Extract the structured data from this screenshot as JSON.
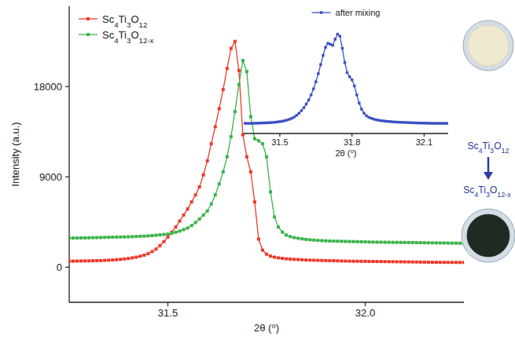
{
  "chart_data": [
    {
      "type": "line",
      "marker": "square",
      "legend": "upper left",
      "x_label": "2θ (⁰)",
      "y_label": "Intensity (a.u.)",
      "annotations": [
        "Sc4Ti3O12",
        "Sc4Ti3O12-x"
      ],
      "xlim": [
        31.25,
        32.25
      ],
      "ylim": [
        -3500,
        26000
      ],
      "xticks": [
        31.5,
        {
          "value": 32,
          "label": "32.0"
        }
      ],
      "yticks": [
        0,
        9000,
        18000
      ],
      "x": [
        31.25,
        31.26,
        31.27,
        31.28,
        31.29,
        31.3,
        31.31,
        31.32,
        31.33,
        31.34,
        31.35,
        31.36,
        31.37,
        31.38,
        31.39,
        31.4,
        31.41,
        31.42,
        31.43,
        31.44,
        31.45,
        31.46,
        31.47,
        31.48,
        31.49,
        31.5,
        31.51,
        31.52,
        31.53,
        31.54,
        31.55,
        31.56,
        31.57,
        31.58,
        31.59,
        31.6,
        31.61,
        31.62,
        31.63,
        31.64,
        31.65,
        31.66,
        31.67,
        31.68,
        31.69,
        31.7,
        31.71,
        31.72,
        31.73,
        31.74,
        31.75,
        31.76,
        31.77,
        31.78,
        31.79,
        31.8,
        31.81,
        31.82,
        31.83,
        31.84,
        31.85,
        31.86,
        31.87,
        31.88,
        31.89,
        31.9,
        31.91,
        31.92,
        31.93,
        31.94,
        31.95,
        31.96,
        31.97,
        31.98,
        31.99,
        32,
        32.01,
        32.02,
        32.03,
        32.04,
        32.05,
        32.06,
        32.07,
        32.08,
        32.09,
        32.1,
        32.11,
        32.12,
        32.13,
        32.14,
        32.15,
        32.16,
        32.17,
        32.18,
        32.19,
        32.2,
        32.21,
        32.22,
        32.23,
        32.24,
        32.25
      ],
      "series": [
        {
          "name": "Sc4Ti3O12",
          "color": "#ee3a2a",
          "values": [
            600,
            605,
            610,
            615,
            620,
            630,
            640,
            650,
            660,
            680,
            700,
            720,
            750,
            780,
            820,
            870,
            930,
            1000,
            1100,
            1200,
            1350,
            1550,
            1800,
            2150,
            2550,
            3000,
            3500,
            4000,
            4600,
            5200,
            5800,
            6500,
            7200,
            8000,
            9200,
            10600,
            12300,
            14000,
            15800,
            17700,
            19800,
            21800,
            22500,
            19600,
            13200,
            11000,
            9500,
            6500,
            2800,
            1700,
            1300,
            1100,
            1000,
            930,
            880,
            840,
            810,
            780,
            760,
            740,
            720,
            700,
            690,
            680,
            670,
            660,
            650,
            640,
            630,
            620,
            610,
            600,
            595,
            590,
            585,
            580,
            575,
            570,
            565,
            560,
            555,
            550,
            545,
            540,
            535,
            530,
            525,
            520,
            515,
            510,
            505,
            500,
            495,
            490,
            485,
            480,
            478,
            476,
            474,
            472,
            470
          ]
        },
        {
          "name": "Sc4Ti3O12-x",
          "color": "#3bb34a",
          "values": [
            2900,
            2905,
            2910,
            2915,
            2920,
            2930,
            2940,
            2950,
            2960,
            2970,
            2980,
            2990,
            3000,
            3010,
            3020,
            3030,
            3040,
            3060,
            3080,
            3100,
            3120,
            3150,
            3180,
            3220,
            3260,
            3300,
            3380,
            3480,
            3600,
            3750,
            3900,
            4150,
            4450,
            4800,
            5200,
            5600,
            6300,
            7200,
            8300,
            9500,
            11000,
            13000,
            15500,
            18200,
            20600,
            19500,
            15000,
            12800,
            12600,
            12300,
            11000,
            7500,
            5000,
            4000,
            3500,
            3200,
            3050,
            2950,
            2880,
            2820,
            2770,
            2730,
            2700,
            2670,
            2650,
            2630,
            2610,
            2600,
            2590,
            2580,
            2570,
            2560,
            2550,
            2540,
            2530,
            2520,
            2510,
            2500,
            2495,
            2490,
            2485,
            2480,
            2475,
            2470,
            2465,
            2460,
            2455,
            2450,
            2445,
            2440,
            2435,
            2430,
            2425,
            2420,
            2415,
            2410,
            2405,
            2400,
            2395,
            2390,
            2385
          ]
        }
      ]
    },
    {
      "type": "line",
      "marker": "square",
      "legend": "upper center",
      "tick_labels": "x",
      "x_label": "2θ (⁰)",
      "xlim": [
        31.35,
        32.2
      ],
      "ylim": [
        0,
        1.1
      ],
      "xticks": [
        31.5,
        31.8,
        32.1
      ],
      "x": [
        31.35,
        31.36,
        31.37,
        31.38,
        31.39,
        31.4,
        31.41,
        31.42,
        31.43,
        31.44,
        31.45,
        31.46,
        31.47,
        31.48,
        31.49,
        31.5,
        31.51,
        31.52,
        31.53,
        31.54,
        31.55,
        31.56,
        31.57,
        31.58,
        31.59,
        31.6,
        31.61,
        31.62,
        31.63,
        31.64,
        31.65,
        31.66,
        31.67,
        31.68,
        31.69,
        31.7,
        31.71,
        31.72,
        31.73,
        31.74,
        31.75,
        31.76,
        31.77,
        31.78,
        31.79,
        31.8,
        31.81,
        31.82,
        31.83,
        31.84,
        31.85,
        31.86,
        31.87,
        31.88,
        31.89,
        31.9,
        31.91,
        31.92,
        31.93,
        31.94,
        31.95,
        31.96,
        31.97,
        31.98,
        31.99,
        32,
        32.01,
        32.02,
        32.03,
        32.04,
        32.05,
        32.06,
        32.07,
        32.08,
        32.09,
        32.1,
        32.11,
        32.12,
        32.13,
        32.14,
        32.15,
        32.16,
        32.17,
        32.18,
        32.19,
        32.2
      ],
      "series": [
        {
          "name": "after mixing",
          "color": "#3a4fc0",
          "values": [
            0.1,
            0.1,
            0.1,
            0.1,
            0.101,
            0.101,
            0.102,
            0.103,
            0.104,
            0.105,
            0.106,
            0.107,
            0.109,
            0.111,
            0.114,
            0.117,
            0.121,
            0.126,
            0.132,
            0.14,
            0.15,
            0.163,
            0.18,
            0.2,
            0.225,
            0.255,
            0.29,
            0.33,
            0.38,
            0.44,
            0.51,
            0.59,
            0.68,
            0.77,
            0.85,
            0.89,
            0.88,
            0.87,
            0.93,
            0.98,
            0.96,
            0.84,
            0.7,
            0.6,
            0.56,
            0.53,
            0.47,
            0.38,
            0.3,
            0.24,
            0.2,
            0.175,
            0.16,
            0.15,
            0.142,
            0.136,
            0.131,
            0.127,
            0.124,
            0.121,
            0.119,
            0.117,
            0.115,
            0.113,
            0.112,
            0.111,
            0.11,
            0.109,
            0.108,
            0.107,
            0.106,
            0.105,
            0.104,
            0.103,
            0.103,
            0.102,
            0.102,
            0.101,
            0.101,
            0.1,
            0.1,
            0.1,
            0.1,
            0.1,
            0.1,
            0.1
          ]
        }
      ]
    }
  ]
}
